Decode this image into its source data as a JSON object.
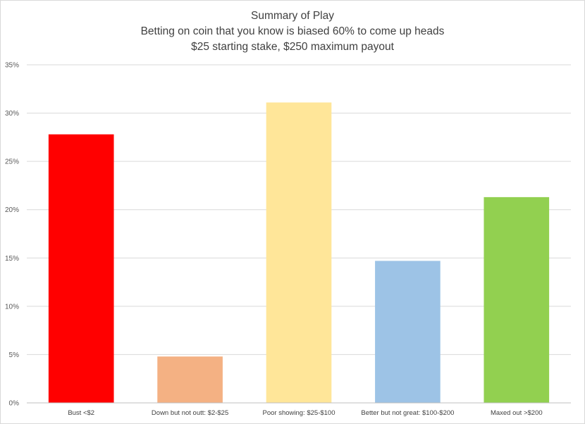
{
  "chart_data": {
    "type": "bar",
    "title": "Summary of Play",
    "subtitle_lines": [
      "Betting on coin that you know is biased 60% to come up heads",
      "$25 starting stake, $250 maximum payout"
    ],
    "xlabel": "",
    "ylabel": "",
    "categories": [
      "Bust <$2",
      "Down but not outt: $2-$25",
      "Poor showing: $25-$100",
      "Better but not great: $100-$200",
      "Maxed out >$200"
    ],
    "values": [
      27.8,
      4.8,
      31.1,
      14.7,
      21.3
    ],
    "bar_colors": [
      "#ff0000",
      "#f4b183",
      "#ffe699",
      "#9dc3e6",
      "#92d050"
    ],
    "ylim": [
      0,
      35
    ],
    "yticks": [
      0,
      5,
      10,
      15,
      20,
      25,
      30,
      35
    ],
    "ytick_labels": [
      "0%",
      "5%",
      "10%",
      "15%",
      "20%",
      "25%",
      "30%",
      "35%"
    ],
    "grid": true,
    "legend": "none"
  }
}
